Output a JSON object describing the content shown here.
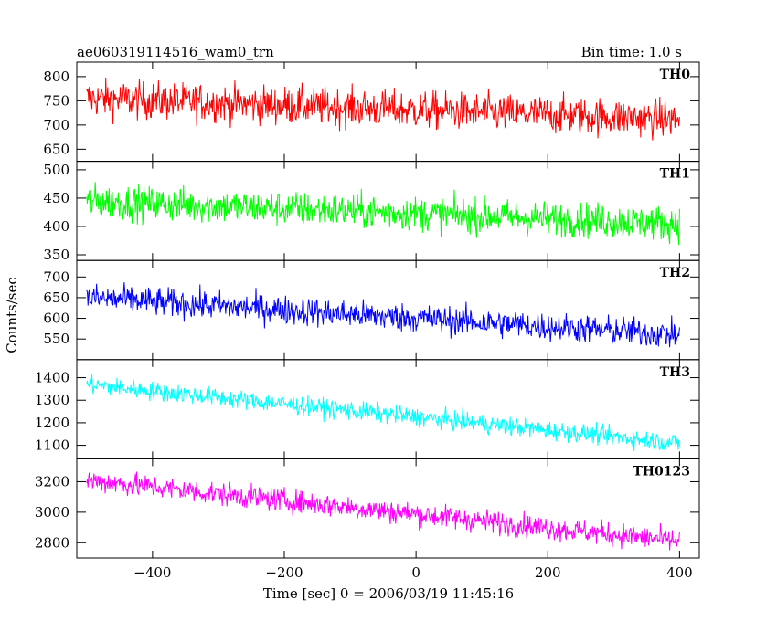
{
  "header": {
    "title": "ae060319114516_wam0_trn",
    "bin_time": "Bin time: 1.0 s"
  },
  "axes": {
    "xlabel": "Time [sec] 0 = 2006/03/19 11:45:16",
    "ylabel": "Counts/sec",
    "xlim": [
      -515,
      430
    ],
    "xticks": [
      -400,
      -200,
      0,
      200,
      400
    ],
    "xtick_labels": [
      "−400",
      "−200",
      "0",
      "200",
      "400"
    ]
  },
  "chart_data": [
    {
      "type": "line",
      "name": "TH0",
      "color": "#ff0000",
      "x_range": [
        -500,
        400
      ],
      "ylim": [
        625,
        830
      ],
      "yticks": [
        650,
        700,
        750,
        800
      ],
      "trend": {
        "start": 755,
        "end": 712,
        "noise": 28
      }
    },
    {
      "type": "line",
      "name": "TH1",
      "color": "#00ff00",
      "x_range": [
        -500,
        400
      ],
      "ylim": [
        340,
        515
      ],
      "yticks": [
        350,
        400,
        450,
        500
      ],
      "trend": {
        "start": 445,
        "end": 405,
        "noise": 22
      }
    },
    {
      "type": "line",
      "name": "TH2",
      "color": "#0000ff",
      "x_range": [
        -500,
        400
      ],
      "ylim": [
        500,
        740
      ],
      "yticks": [
        550,
        600,
        650,
        700
      ],
      "trend": {
        "start": 650,
        "end": 560,
        "noise": 25
      }
    },
    {
      "type": "line",
      "name": "TH3",
      "color": "#00ffff",
      "x_range": [
        -500,
        400
      ],
      "ylim": [
        1040,
        1480
      ],
      "yticks": [
        1100,
        1200,
        1300,
        1400
      ],
      "trend": {
        "start": 1370,
        "end": 1110,
        "noise": 30
      }
    },
    {
      "type": "line",
      "name": "TH0123",
      "color": "#ff00ff",
      "x_range": [
        -500,
        400
      ],
      "ylim": [
        2700,
        3350
      ],
      "yticks": [
        2800,
        3000,
        3200
      ],
      "trend": {
        "start": 3210,
        "end": 2810,
        "noise": 55
      }
    }
  ]
}
